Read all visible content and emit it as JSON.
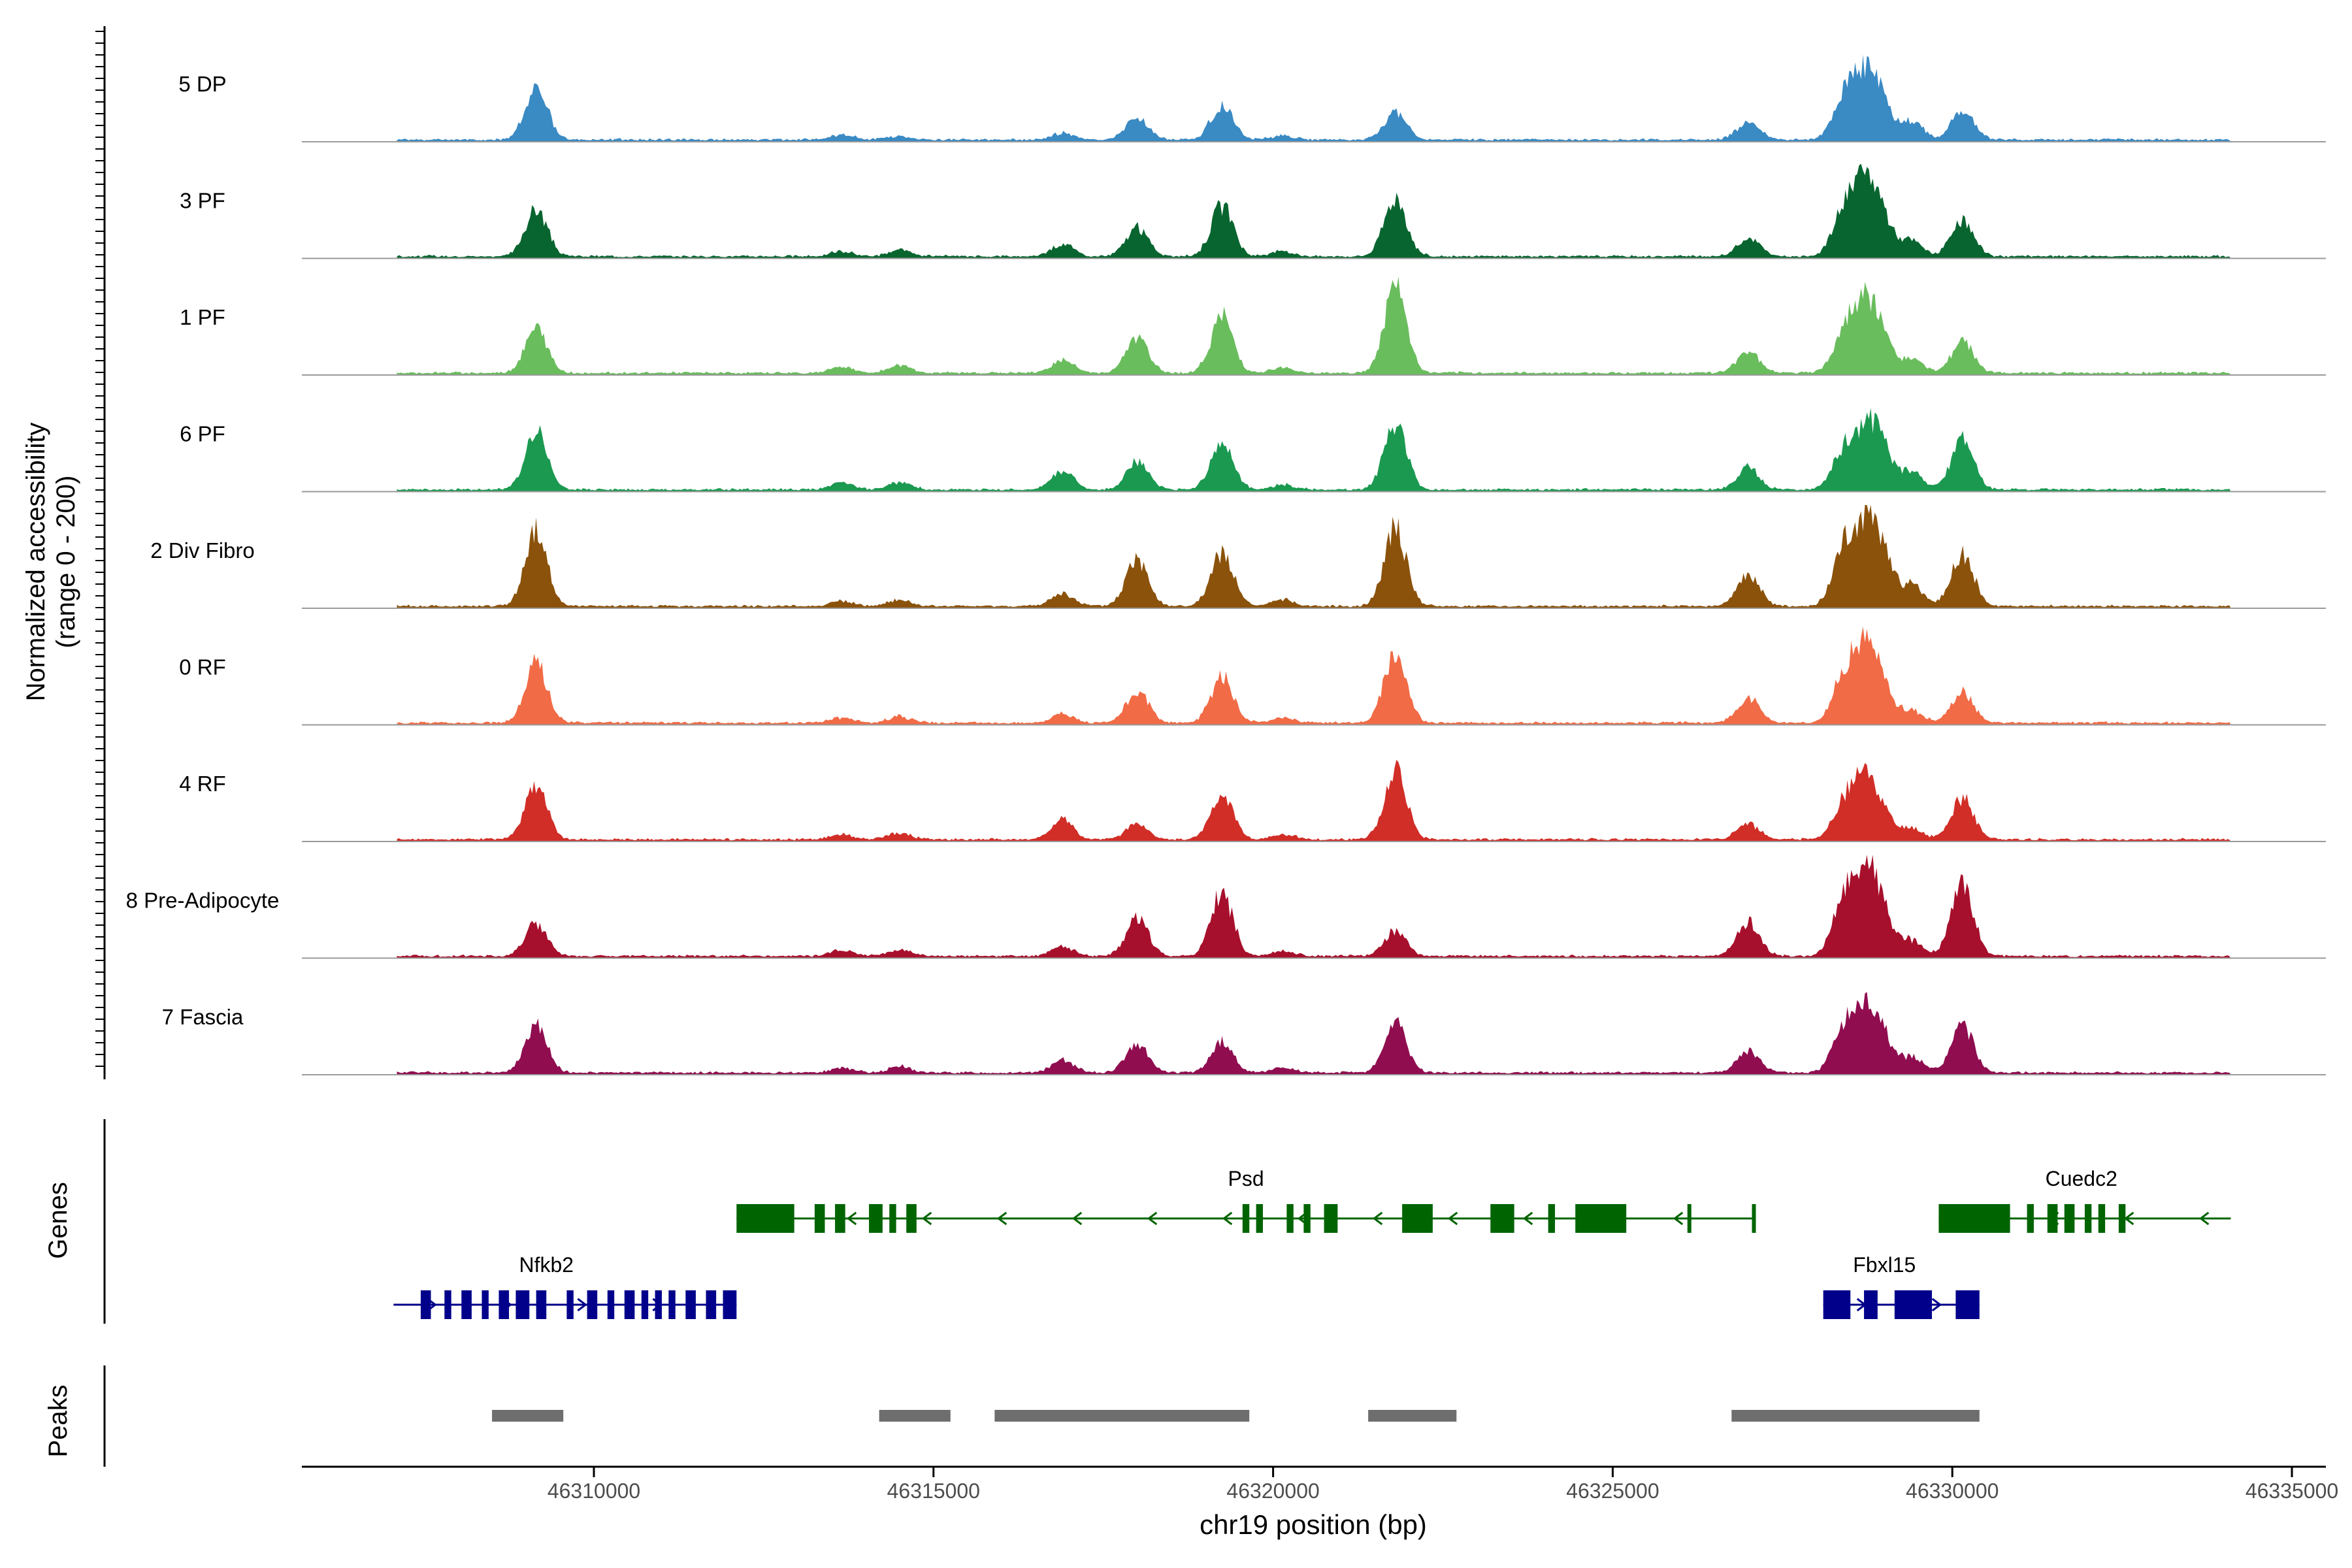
{
  "chart_data": {
    "type": "area",
    "chromosome": "chr19",
    "x_range": [
      46305700,
      46335500
    ],
    "y_range": [
      0,
      200
    ],
    "ylabel": "Normalized accessibility",
    "ylabel_sub": "(range 0 - 200)",
    "xlabel": "chr19 position (bp)",
    "x_ticks": [
      46310000,
      46315000,
      46320000,
      46325000,
      46330000,
      46335000
    ],
    "x_tick_labels": [
      "46310000",
      "46315000",
      "46320000",
      "46325000",
      "46330000",
      "46335000"
    ],
    "track_extent": [
      46307100,
      46334100
    ],
    "peak_centers": [
      46309150,
      46313650,
      46314500,
      46316900,
      46318000,
      46319250,
      46320150,
      46321800,
      46327000,
      46328400,
      46328700,
      46328950,
      46329400,
      46330150
    ],
    "series": [
      {
        "name": "5 DP",
        "color": "#3A8AC4",
        "heights": [
          85,
          8,
          6,
          10,
          35,
          55,
          6,
          45,
          28,
          65,
          92,
          60,
          30,
          48
        ]
      },
      {
        "name": "3 PF",
        "color": "#08652F",
        "heights": [
          75,
          8,
          10,
          20,
          45,
          80,
          8,
          95,
          30,
          70,
          98,
          65,
          25,
          55
        ]
      },
      {
        "name": "1 PF",
        "color": "#6ABD5D",
        "heights": [
          70,
          10,
          12,
          20,
          55,
          90,
          8,
          135,
          35,
          60,
          95,
          55,
          22,
          50
        ]
      },
      {
        "name": "6 PF",
        "color": "#1B9950",
        "heights": [
          90,
          10,
          12,
          30,
          45,
          75,
          8,
          105,
          35,
          60,
          75,
          70,
          28,
          80
        ]
      },
      {
        "name": "2 Div Fibro",
        "color": "#8B520B",
        "heights": [
          120,
          8,
          10,
          20,
          75,
          85,
          10,
          125,
          50,
          85,
          105,
          85,
          35,
          85
        ]
      },
      {
        "name": "0 RF",
        "color": "#F16B46",
        "heights": [
          95,
          8,
          10,
          15,
          50,
          75,
          8,
          115,
          40,
          70,
          105,
          55,
          20,
          50
        ]
      },
      {
        "name": "4 RF",
        "color": "#D12E27",
        "heights": [
          85,
          8,
          10,
          30,
          25,
          70,
          8,
          110,
          25,
          55,
          85,
          40,
          18,
          65
        ]
      },
      {
        "name": "8 Pre-Adipocyte",
        "color": "#A7102C",
        "heights": [
          50,
          10,
          10,
          15,
          60,
          100,
          8,
          40,
          55,
          85,
          115,
          70,
          25,
          115
        ]
      },
      {
        "name": "7 Fascia",
        "color": "#900D50",
        "heights": [
          80,
          8,
          10,
          20,
          45,
          50,
          8,
          80,
          35,
          70,
          80,
          60,
          25,
          75
        ]
      }
    ],
    "genes_label": "Genes",
    "genes": [
      {
        "name": "Psd",
        "color": "#006400",
        "strand": "-",
        "start": 46312100,
        "end": 46327100,
        "exons": [
          [
            46312100,
            46312950
          ],
          [
            46313250,
            46313400
          ],
          [
            46313550,
            46313700
          ],
          [
            46314050,
            46314250
          ],
          [
            46314350,
            46314450
          ],
          [
            46314600,
            46314750
          ],
          [
            46319550,
            46319650
          ],
          [
            46319750,
            46319850
          ],
          [
            46320200,
            46320300
          ],
          [
            46320450,
            46320550
          ],
          [
            46320750,
            46320950
          ],
          [
            46321900,
            46322350
          ],
          [
            46323200,
            46323550
          ],
          [
            46324050,
            46324150
          ],
          [
            46324450,
            46325200
          ],
          [
            46326100,
            46326150
          ],
          [
            46327050,
            46327100
          ]
        ]
      },
      {
        "name": "Cuedc2",
        "color": "#006400",
        "strand": "-",
        "start": 46329800,
        "end": 46334100,
        "exons": [
          [
            46329800,
            46330850
          ],
          [
            46331100,
            46331200
          ],
          [
            46331400,
            46331550
          ],
          [
            46331650,
            46331800
          ],
          [
            46331950,
            46332050
          ],
          [
            46332150,
            46332250
          ],
          [
            46332450,
            46332550
          ]
        ]
      },
      {
        "name": "Nfkb2",
        "color": "#00008B",
        "strand": "+",
        "start": 46307050,
        "end": 46312100,
        "exons": [
          [
            46307450,
            46307600
          ],
          [
            46307800,
            46307900
          ],
          [
            46308050,
            46308200
          ],
          [
            46308350,
            46308450
          ],
          [
            46308600,
            46308750
          ],
          [
            46308850,
            46309050
          ],
          [
            46309150,
            46309300
          ],
          [
            46309600,
            46309700
          ],
          [
            46309900,
            46310050
          ],
          [
            46310200,
            46310300
          ],
          [
            46310450,
            46310600
          ],
          [
            46310700,
            46310800
          ],
          [
            46310900,
            46311000
          ],
          [
            46311100,
            46311200
          ],
          [
            46311350,
            46311500
          ],
          [
            46311650,
            46311800
          ],
          [
            46311900,
            46312100
          ]
        ]
      },
      {
        "name": "Fbxl15",
        "color": "#00008B",
        "strand": "+",
        "start": 46328100,
        "end": 46330400,
        "exons": [
          [
            46328100,
            46328500
          ],
          [
            46328700,
            46328900
          ],
          [
            46329150,
            46329700
          ],
          [
            46330050,
            46330400
          ]
        ]
      }
    ],
    "peaks_label": "Peaks",
    "peak_color": "#6E6E6E",
    "peaks": [
      [
        46308500,
        46309550
      ],
      [
        46314200,
        46315250
      ],
      [
        46315900,
        46319650
      ],
      [
        46321400,
        46322700
      ],
      [
        46326750,
        46330400
      ]
    ]
  }
}
